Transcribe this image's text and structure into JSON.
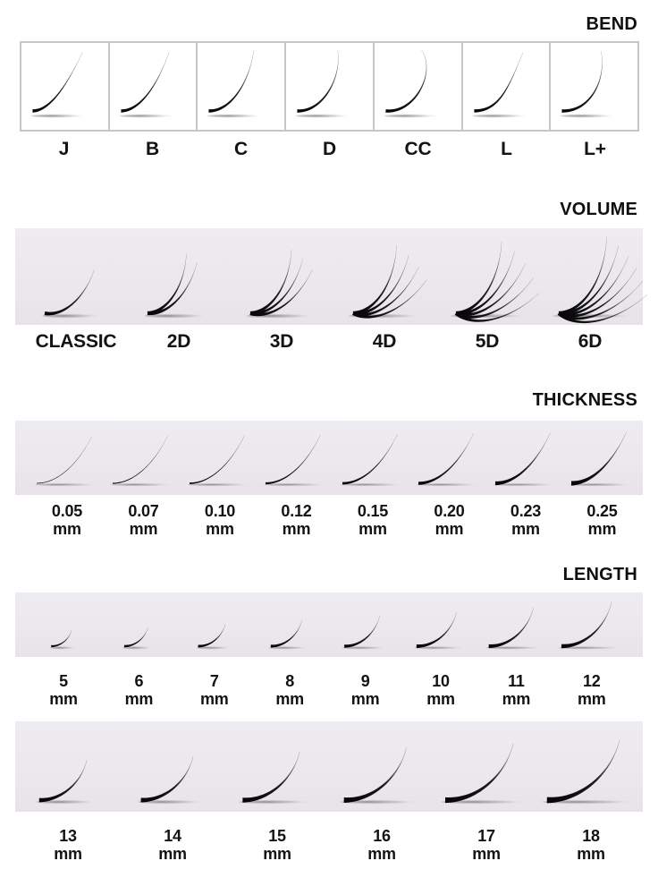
{
  "colors": {
    "background": "#ffffff",
    "band_background": "#ebe7ec",
    "box_border": "#c8c6c8",
    "text": "#131313",
    "lash_base": "#0a0a0a",
    "lash_tip_fade": "#969696",
    "shadow": "#8a8a8a"
  },
  "sections": {
    "bend": {
      "title": "BEND",
      "items": [
        {
          "label": "J",
          "curl": "J"
        },
        {
          "label": "B",
          "curl": "B"
        },
        {
          "label": "C",
          "curl": "C"
        },
        {
          "label": "D",
          "curl": "D"
        },
        {
          "label": "CC",
          "curl": "CC"
        },
        {
          "label": "L",
          "curl": "L"
        },
        {
          "label": "L+",
          "curl": "L+"
        }
      ]
    },
    "volume": {
      "title": "VOLUME",
      "items": [
        {
          "label": "CLASSIC",
          "lash_count": 1
        },
        {
          "label": "2D",
          "lash_count": 2
        },
        {
          "label": "3D",
          "lash_count": 3
        },
        {
          "label": "4D",
          "lash_count": 4
        },
        {
          "label": "5D",
          "lash_count": 5
        },
        {
          "label": "6D",
          "lash_count": 6
        }
      ]
    },
    "thickness": {
      "title": "THICKNESS",
      "items": [
        {
          "label": "0.05",
          "unit": "mm"
        },
        {
          "label": "0.07",
          "unit": "mm"
        },
        {
          "label": "0.10",
          "unit": "mm"
        },
        {
          "label": "0.12",
          "unit": "mm"
        },
        {
          "label": "0.15",
          "unit": "mm"
        },
        {
          "label": "0.20",
          "unit": "mm"
        },
        {
          "label": "0.23",
          "unit": "mm"
        },
        {
          "label": "0.25",
          "unit": "mm"
        }
      ]
    },
    "length": {
      "title": "LENGTH",
      "row1": [
        {
          "label": "5",
          "unit": "mm"
        },
        {
          "label": "6",
          "unit": "mm"
        },
        {
          "label": "7",
          "unit": "mm"
        },
        {
          "label": "8",
          "unit": "mm"
        },
        {
          "label": "9",
          "unit": "mm"
        },
        {
          "label": "10",
          "unit": "mm"
        },
        {
          "label": "11",
          "unit": "mm"
        },
        {
          "label": "12",
          "unit": "mm"
        }
      ],
      "row2": [
        {
          "label": "13",
          "unit": "mm"
        },
        {
          "label": "14",
          "unit": "mm"
        },
        {
          "label": "15",
          "unit": "mm"
        },
        {
          "label": "16",
          "unit": "mm"
        },
        {
          "label": "17",
          "unit": "mm"
        },
        {
          "label": "18",
          "unit": "mm"
        }
      ]
    }
  }
}
